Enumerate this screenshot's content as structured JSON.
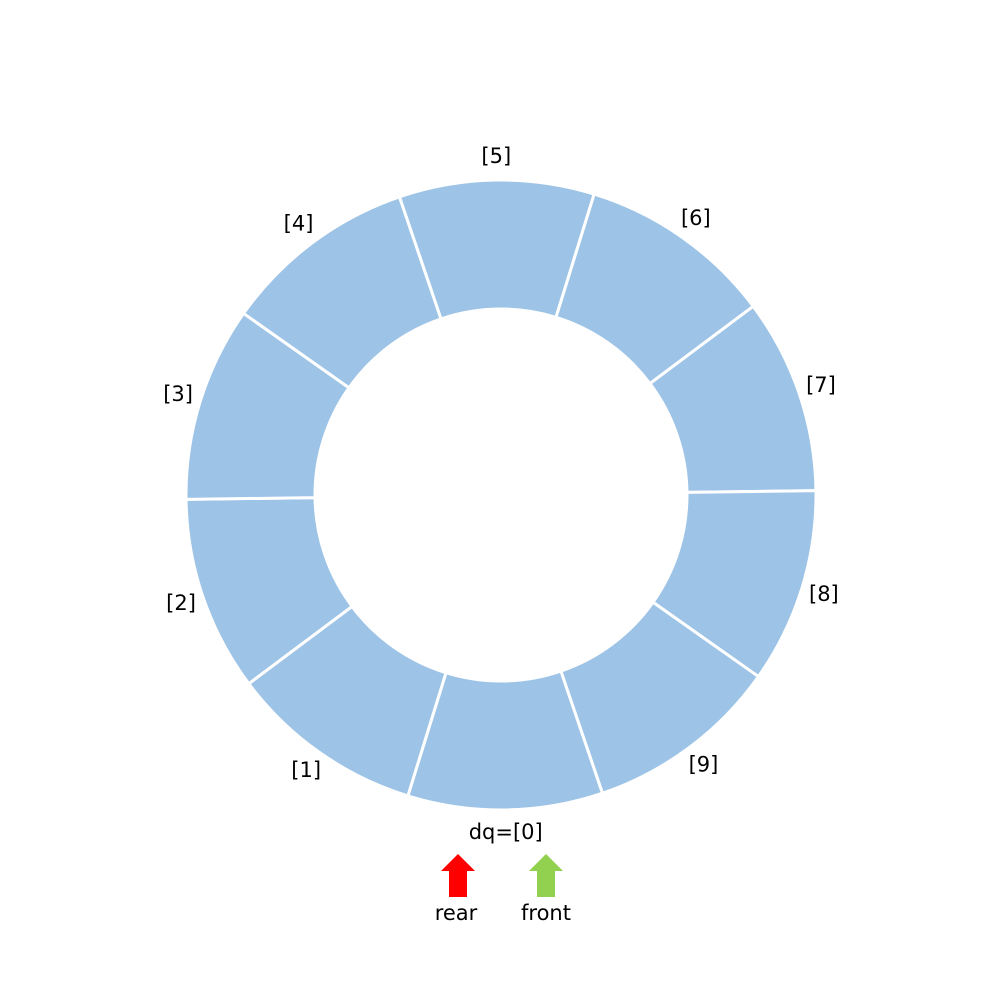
{
  "cells": [
    {
      "label": "dq=[0]"
    },
    {
      "label": "[1]"
    },
    {
      "label": "[2]"
    },
    {
      "label": "[3]"
    },
    {
      "label": "[4]"
    },
    {
      "label": "[5]"
    },
    {
      "label": "[6]"
    },
    {
      "label": "[7]"
    },
    {
      "label": "[8]"
    },
    {
      "label": "[9]"
    }
  ],
  "pointers": [
    {
      "label": "rear"
    },
    {
      "label": "front"
    }
  ]
}
